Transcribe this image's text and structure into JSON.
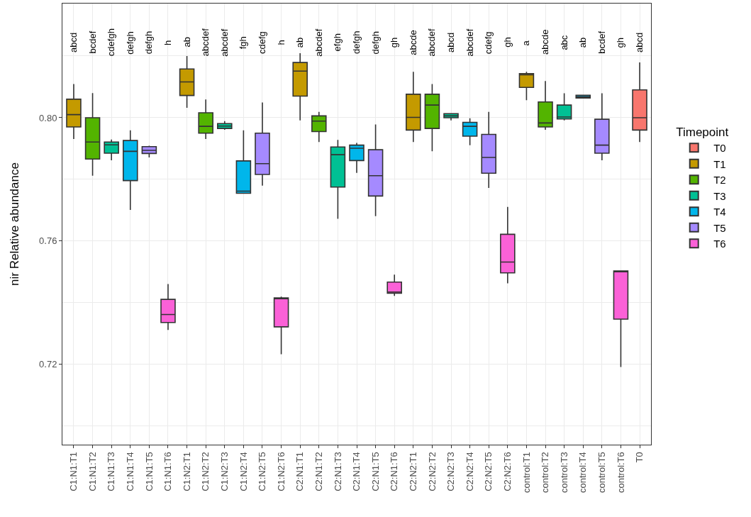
{
  "chart_data": {
    "type": "box",
    "ylabel": "nir Relative abundance",
    "legend_title": "Timepoint",
    "legend": "right",
    "grid": true,
    "ylim": [
      0.694,
      0.837
    ],
    "yticks": [
      {
        "value": 0.72,
        "label": "0.72"
      },
      {
        "value": 0.76,
        "label": "0.76"
      },
      {
        "value": 0.8,
        "label": "0.80"
      }
    ],
    "categories": [
      "C1:N1:T1",
      "C1:N1:T2",
      "C1:N1:T3",
      "C1:N1:T4",
      "C1:N1:T5",
      "C1:N1:T6",
      "C1:N2:T1",
      "C1:N2:T2",
      "C1:N2:T3",
      "C1:N2:T4",
      "C1:N2:T5",
      "C1:N2:T6",
      "C2:N1:T1",
      "C2:N1:T2",
      "C2:N1:T3",
      "C2:N1:T4",
      "C2:N1:T5",
      "C2:N1:T6",
      "C2:N2:T1",
      "C2:N2:T2",
      "C2:N2:T3",
      "C2:N2:T4",
      "C2:N2:T5",
      "C2:N2:T6",
      "control:T1",
      "control:T2",
      "control:T3",
      "control:T4",
      "control:T5",
      "control:T6",
      "T0"
    ],
    "annotations": [
      "abcd",
      "bcdef",
      "cdefgh",
      "defgh",
      "defgh",
      "h",
      "ab",
      "abcdef",
      "abcdef",
      "fgh",
      "cdefg",
      "h",
      "ab",
      "abcdef",
      "efgh",
      "defgh",
      "defgh",
      "gh",
      "abcde",
      "abcdef",
      "abcd",
      "abcdef",
      "cdefg",
      "gh",
      "a",
      "abcde",
      "abc",
      "ab",
      "bcdef",
      "gh",
      "abcd"
    ],
    "series": [
      {
        "name": "T0",
        "color": "#f8766d",
        "boxes": [
          null,
          null,
          null,
          null,
          null,
          null,
          null,
          null,
          null,
          null,
          null,
          null,
          null,
          null,
          null,
          null,
          null,
          null,
          null,
          null,
          null,
          null,
          null,
          null,
          null,
          null,
          null,
          null,
          null,
          null,
          {
            "low": 0.7921,
            "q1": 0.796,
            "median": 0.8,
            "q3": 0.809,
            "high": 0.8179
          }
        ]
      },
      {
        "name": "T1",
        "color": "#c49a00",
        "boxes": [
          {
            "low": 0.7931,
            "q1": 0.797,
            "median": 0.801,
            "q3": 0.806,
            "high": 0.8109
          },
          null,
          null,
          null,
          null,
          null,
          {
            "low": 0.8032,
            "q1": 0.8072,
            "median": 0.8116,
            "q3": 0.8158,
            "high": 0.82
          },
          null,
          null,
          null,
          null,
          null,
          {
            "low": 0.7991,
            "q1": 0.807,
            "median": 0.8151,
            "q3": 0.8179,
            "high": 0.8209
          },
          null,
          null,
          null,
          null,
          null,
          {
            "low": 0.7921,
            "q1": 0.796,
            "median": 0.8001,
            "q3": 0.8076,
            "high": 0.8149
          },
          null,
          null,
          null,
          null,
          null,
          {
            "low": 0.8057,
            "q1": 0.8098,
            "median": 0.8139,
            "q3": 0.8143,
            "high": 0.8149
          },
          null,
          null,
          null,
          null,
          null,
          null
        ]
      },
      {
        "name": "T2",
        "color": "#53b400",
        "boxes": [
          null,
          {
            "low": 0.7812,
            "q1": 0.7866,
            "median": 0.7921,
            "q3": 0.8,
            "high": 0.808
          },
          null,
          null,
          null,
          null,
          null,
          {
            "low": 0.7931,
            "q1": 0.795,
            "median": 0.7972,
            "q3": 0.8016,
            "high": 0.8059
          },
          null,
          null,
          null,
          null,
          null,
          {
            "low": 0.7921,
            "q1": 0.7955,
            "median": 0.7989,
            "q3": 0.8006,
            "high": 0.8019
          },
          null,
          null,
          null,
          null,
          null,
          {
            "low": 0.7891,
            "q1": 0.7965,
            "median": 0.8041,
            "q3": 0.8076,
            "high": 0.8109
          },
          null,
          null,
          null,
          null,
          null,
          {
            "low": 0.7961,
            "q1": 0.797,
            "median": 0.7983,
            "q3": 0.8051,
            "high": 0.8119
          },
          null,
          null,
          null,
          null,
          null
        ]
      },
      {
        "name": "T3",
        "color": "#00c094",
        "boxes": [
          null,
          null,
          {
            "low": 0.7862,
            "q1": 0.7885,
            "median": 0.7912,
            "q3": 0.7921,
            "high": 0.7929
          },
          null,
          null,
          null,
          null,
          null,
          {
            "low": 0.7961,
            "q1": 0.7965,
            "median": 0.7973,
            "q3": 0.7981,
            "high": 0.7989
          },
          null,
          null,
          null,
          null,
          null,
          {
            "low": 0.7672,
            "q1": 0.7775,
            "median": 0.788,
            "q3": 0.7905,
            "high": 0.7928
          },
          null,
          null,
          null,
          null,
          null,
          {
            "low": 0.7991,
            "q1": 0.8,
            "median": 0.8006,
            "q3": 0.8013,
            "high": 0.8013
          },
          null,
          null,
          null,
          null,
          null,
          {
            "low": 0.7991,
            "q1": 0.7996,
            "median": 0.8002,
            "q3": 0.8041,
            "high": 0.8079
          },
          null,
          null,
          null,
          null
        ]
      },
      {
        "name": "T4",
        "color": "#00b6eb",
        "boxes": [
          null,
          null,
          null,
          {
            "low": 0.7701,
            "q1": 0.7796,
            "median": 0.7891,
            "q3": 0.7926,
            "high": 0.7959
          },
          null,
          null,
          null,
          null,
          null,
          {
            "low": 0.7755,
            "q1": 0.7755,
            "median": 0.7762,
            "q3": 0.786,
            "high": 0.7959
          },
          null,
          null,
          null,
          null,
          null,
          {
            "low": 0.7821,
            "q1": 0.7861,
            "median": 0.7901,
            "q3": 0.7911,
            "high": 0.7918
          },
          null,
          null,
          null,
          null,
          null,
          {
            "low": 0.7911,
            "q1": 0.794,
            "median": 0.7972,
            "q3": 0.7985,
            "high": 0.7998
          },
          null,
          null,
          null,
          null,
          null,
          {
            "low": 0.8064,
            "q1": 0.8064,
            "median": 0.8068,
            "q3": 0.8073,
            "high": 0.8073
          },
          null,
          null,
          null
        ]
      },
      {
        "name": "T5",
        "color": "#a58aff",
        "boxes": [
          null,
          null,
          null,
          null,
          {
            "low": 0.7871,
            "q1": 0.7884,
            "median": 0.7894,
            "q3": 0.7906,
            "high": 0.7909
          },
          null,
          null,
          null,
          null,
          null,
          {
            "low": 0.778,
            "q1": 0.7816,
            "median": 0.7851,
            "q3": 0.795,
            "high": 0.8049
          },
          null,
          null,
          null,
          null,
          null,
          {
            "low": 0.7681,
            "q1": 0.7746,
            "median": 0.7812,
            "q3": 0.7896,
            "high": 0.7978
          },
          null,
          null,
          null,
          null,
          null,
          {
            "low": 0.7772,
            "q1": 0.782,
            "median": 0.7871,
            "q3": 0.7946,
            "high": 0.8019
          },
          null,
          null,
          null,
          null,
          null,
          {
            "low": 0.7862,
            "q1": 0.7885,
            "median": 0.7911,
            "q3": 0.7995,
            "high": 0.8079
          },
          null,
          null
        ]
      },
      {
        "name": "T6",
        "color": "#fb61d7",
        "boxes": [
          null,
          null,
          null,
          null,
          null,
          {
            "low": 0.7312,
            "q1": 0.7336,
            "median": 0.7362,
            "q3": 0.7411,
            "high": 0.7461
          },
          null,
          null,
          null,
          null,
          null,
          {
            "low": 0.7233,
            "q1": 0.7322,
            "median": 0.7413,
            "q3": 0.7416,
            "high": 0.742
          },
          null,
          null,
          null,
          null,
          null,
          {
            "low": 0.7422,
            "q1": 0.7431,
            "median": 0.7435,
            "q3": 0.7467,
            "high": 0.7491
          },
          null,
          null,
          null,
          null,
          null,
          {
            "low": 0.7463,
            "q1": 0.7497,
            "median": 0.7532,
            "q3": 0.7622,
            "high": 0.7711
          },
          null,
          null,
          null,
          null,
          null,
          {
            "low": 0.7192,
            "q1": 0.7347,
            "median": 0.7501,
            "q3": 0.7503,
            "high": 0.7503
          },
          null
        ]
      }
    ]
  }
}
